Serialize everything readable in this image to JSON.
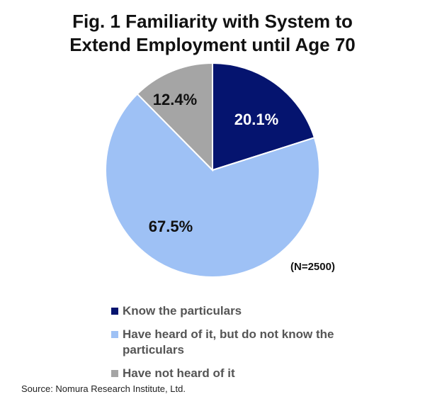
{
  "title_lines": [
    "Fig. 1 Familiarity with System to",
    "Extend Employment until Age 70"
  ],
  "note": "(N=2500)",
  "source": "Source: Nomura Research Institute, Ltd.",
  "chart_data": {
    "type": "pie",
    "title": "Fig. 1 Familiarity with System to Extend Employment until Age 70",
    "slices": [
      {
        "label": "Know the particulars",
        "value": 20.1,
        "display": "20.1%",
        "color": "#05146f",
        "text_color": "#ffffff"
      },
      {
        "label": "Have heard of it, but do not know the particulars",
        "value": 67.5,
        "display": "67.5%",
        "color": "#9ec1f5",
        "text_color": "#111111"
      },
      {
        "label": "Have not heard of it",
        "value": 12.4,
        "display": "12.4%",
        "color": "#a5a5a5",
        "text_color": "#111111"
      }
    ],
    "legend_position": "bottom"
  }
}
